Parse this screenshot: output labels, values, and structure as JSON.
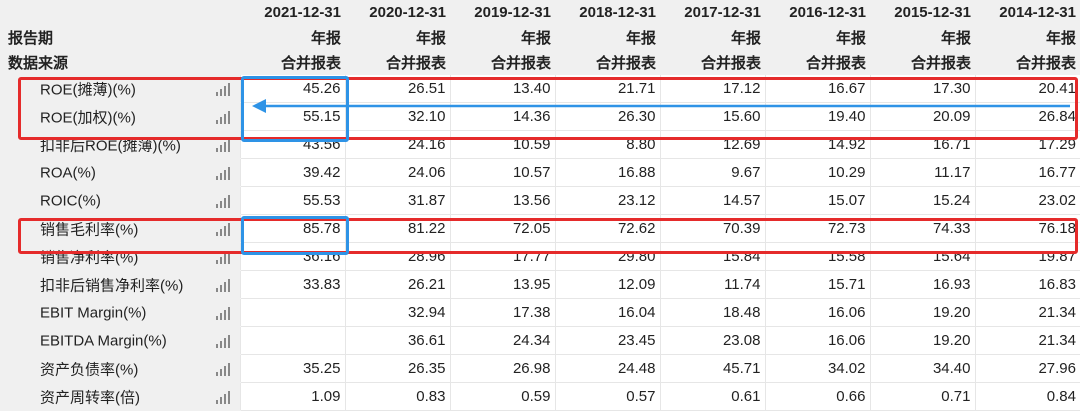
{
  "header": {
    "row1_label": "",
    "row2_label": "报告期",
    "row3_label": "数据来源",
    "dates": [
      "2021-12-31",
      "2020-12-31",
      "2019-12-31",
      "2018-12-31",
      "2017-12-31",
      "2016-12-31",
      "2015-12-31",
      "2014-12-31"
    ],
    "report_type": [
      "年报",
      "年报",
      "年报",
      "年报",
      "年报",
      "年报",
      "年报",
      "年报"
    ],
    "source": [
      "合并报表",
      "合并报表",
      "合并报表",
      "合并报表",
      "合并报表",
      "合并报表",
      "合并报表",
      "合并报表"
    ]
  },
  "rows": [
    {
      "label": "ROE(摊薄)(%)",
      "values": [
        "45.26",
        "26.51",
        "13.40",
        "21.71",
        "17.12",
        "16.67",
        "17.30",
        "20.41"
      ]
    },
    {
      "label": "ROE(加权)(%)",
      "values": [
        "55.15",
        "32.10",
        "14.36",
        "26.30",
        "15.60",
        "19.40",
        "20.09",
        "26.84"
      ]
    },
    {
      "label": "扣非后ROE(摊薄)(%)",
      "values": [
        "43.56",
        "24.16",
        "10.59",
        "8.80",
        "12.69",
        "14.92",
        "16.71",
        "17.29"
      ]
    },
    {
      "label": "ROA(%)",
      "values": [
        "39.42",
        "24.06",
        "10.57",
        "16.88",
        "9.67",
        "10.29",
        "11.17",
        "16.77"
      ]
    },
    {
      "label": "ROIC(%)",
      "values": [
        "55.53",
        "31.87",
        "13.56",
        "23.12",
        "14.57",
        "15.07",
        "15.24",
        "23.02"
      ]
    },
    {
      "label": "销售毛利率(%)",
      "values": [
        "85.78",
        "81.22",
        "72.05",
        "72.62",
        "70.39",
        "72.73",
        "74.33",
        "76.18"
      ]
    },
    {
      "label": "销售净利率(%)",
      "values": [
        "36.16",
        "28.96",
        "17.77",
        "29.80",
        "15.84",
        "15.58",
        "15.64",
        "19.87"
      ]
    },
    {
      "label": "扣非后销售净利率(%)",
      "values": [
        "33.83",
        "26.21",
        "13.95",
        "12.09",
        "11.74",
        "15.71",
        "16.93",
        "16.83"
      ]
    },
    {
      "label": "EBIT Margin(%)",
      "values": [
        "",
        "32.94",
        "17.38",
        "16.04",
        "18.48",
        "16.06",
        "19.20",
        "21.34"
      ]
    },
    {
      "label": "EBITDA Margin(%)",
      "values": [
        "",
        "36.61",
        "24.34",
        "23.45",
        "23.08",
        "16.06",
        "19.20",
        "21.34"
      ]
    },
    {
      "label": "资产负债率(%)",
      "values": [
        "35.25",
        "26.35",
        "26.98",
        "24.48",
        "45.71",
        "34.02",
        "34.40",
        "27.96"
      ]
    },
    {
      "label": "资产周转率(倍)",
      "values": [
        "1.09",
        "0.83",
        "0.59",
        "0.57",
        "0.61",
        "0.66",
        "0.71",
        "0.84"
      ]
    }
  ],
  "colors": {
    "highlight_red": "#e52b2b",
    "highlight_blue": "#2e93e6",
    "header_bg": "#f0f0f0"
  },
  "icons": {
    "row_chart": "bar-chart-icon",
    "arrow": "left-arrow-icon"
  }
}
